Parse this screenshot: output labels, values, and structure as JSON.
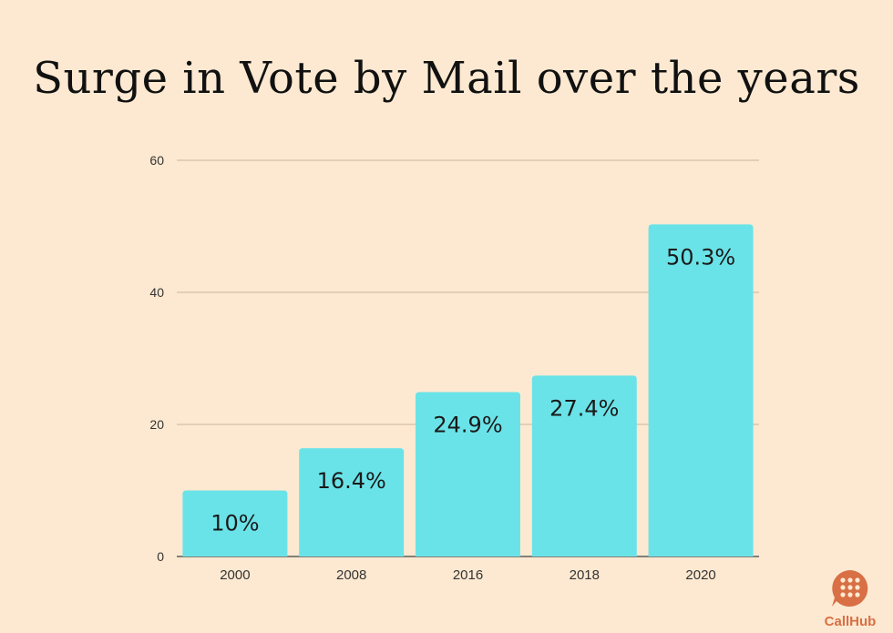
{
  "page": {
    "title": "Surge in Vote by Mail over the years"
  },
  "brand": {
    "name": "CallHub",
    "color": "#d86f45"
  },
  "colors": {
    "background": "#fde9d1",
    "bar": "#6ae3e8",
    "grid": "#c9b49c",
    "axis_text": "#333333"
  },
  "chart_data": {
    "type": "bar",
    "title": "Surge in Vote by Mail over the years",
    "categories": [
      "2000",
      "2008",
      "2016",
      "2018",
      "2020"
    ],
    "values": [
      10,
      16.4,
      24.9,
      27.4,
      50.3
    ],
    "data_labels": [
      "10%",
      "16.4%",
      "24.9%",
      "27.4%",
      "50.3%"
    ],
    "y_ticks": [
      0,
      20,
      40,
      60
    ],
    "ylim": [
      0,
      60
    ],
    "xlabel": "",
    "ylabel": "",
    "grid": true
  }
}
